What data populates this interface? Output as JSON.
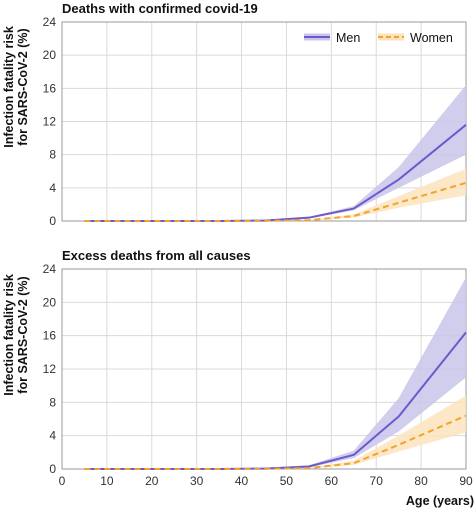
{
  "ylabel_line1": "Infection fatality risk",
  "ylabel_line2": "for SARS-CoV-2 (%)",
  "xlabel": "Age (years)",
  "chart_data": [
    {
      "type": "line",
      "title": "Deaths with confirmed covid-19",
      "xlim": [
        0,
        90
      ],
      "ylim": [
        0,
        24
      ],
      "x_ticks": [
        0,
        10,
        20,
        30,
        40,
        50,
        60,
        70,
        80,
        90
      ],
      "y_ticks": [
        0,
        4,
        8,
        12,
        16,
        20,
        24
      ],
      "grid": true,
      "legend_position": "top-right",
      "x": [
        5,
        15,
        25,
        35,
        45,
        55,
        65,
        75,
        90
      ],
      "series": [
        {
          "name": "Men",
          "color": "#6a5acd",
          "band_color": "#c9c4ea",
          "dashed": false,
          "values": [
            0,
            0,
            0,
            0,
            0.05,
            0.4,
            1.5,
            5.0,
            11.6
          ],
          "lower": [
            0,
            0,
            0,
            0,
            0.03,
            0.3,
            1.3,
            4.0,
            8.0
          ],
          "upper": [
            0,
            0,
            0,
            0,
            0.08,
            0.5,
            1.8,
            6.5,
            16.4
          ]
        },
        {
          "name": "Women",
          "color": "#f2a32a",
          "band_color": "#fce3bd",
          "dashed": true,
          "values": [
            0,
            0,
            0,
            0,
            0.02,
            0.1,
            0.6,
            2.2,
            4.6
          ],
          "lower": [
            0,
            0,
            0,
            0,
            0.01,
            0.07,
            0.4,
            1.6,
            3.1
          ],
          "upper": [
            0,
            0,
            0,
            0,
            0.04,
            0.15,
            0.8,
            3.0,
            6.3
          ]
        }
      ]
    },
    {
      "type": "line",
      "title": "Excess deaths from all causes",
      "xlim": [
        0,
        90
      ],
      "ylim": [
        0,
        24
      ],
      "x_ticks": [
        0,
        10,
        20,
        30,
        40,
        50,
        60,
        70,
        80,
        90
      ],
      "y_ticks": [
        0,
        4,
        8,
        12,
        16,
        20,
        24
      ],
      "grid": true,
      "x": [
        5,
        15,
        25,
        35,
        45,
        55,
        65,
        75,
        90
      ],
      "series": [
        {
          "name": "Men",
          "color": "#6a5acd",
          "band_color": "#c9c4ea",
          "dashed": false,
          "values": [
            0,
            0,
            0,
            0,
            0.05,
            0.3,
            1.7,
            6.3,
            16.4
          ],
          "lower": [
            0,
            0,
            0,
            0,
            0.03,
            0.2,
            1.3,
            4.5,
            11.0
          ],
          "upper": [
            0,
            0,
            0,
            0,
            0.08,
            0.45,
            2.2,
            8.5,
            23.0
          ]
        },
        {
          "name": "Women",
          "color": "#f2a32a",
          "band_color": "#fce3bd",
          "dashed": true,
          "values": [
            0,
            0,
            0,
            0,
            0.02,
            0.1,
            0.7,
            2.9,
            6.4
          ],
          "lower": [
            0,
            0,
            0,
            0,
            0.01,
            0.06,
            0.5,
            2.1,
            4.4
          ],
          "upper": [
            0,
            0,
            0,
            0,
            0.04,
            0.15,
            1.0,
            4.0,
            8.8
          ]
        }
      ]
    }
  ]
}
